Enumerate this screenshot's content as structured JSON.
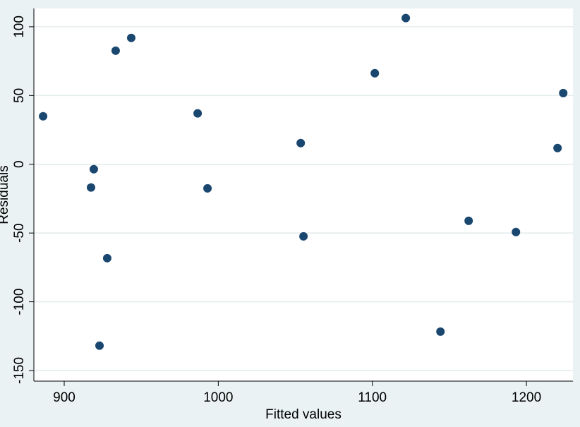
{
  "chart_data": {
    "type": "scatter",
    "x_label": "Fitted values",
    "y_label": "Residuals",
    "color": "#1a476f",
    "x": [
      886.3,
      917.4,
      919.2,
      927.9,
      922.9,
      933.4,
      943.5,
      986.6,
      993.0,
      1053.5,
      1055.3,
      1101.6,
      1121.7,
      1144.2,
      1162.5,
      1193.2,
      1220.2,
      1223.9
    ],
    "values": [
      34.9,
      -16.9,
      -3.6,
      -68.3,
      -131.9,
      82.6,
      91.9,
      37.0,
      -17.5,
      15.4,
      -52.4,
      66.2,
      106.3,
      -121.7,
      -41.1,
      -49.3,
      11.8,
      51.8
    ],
    "xlim": [
      880.3,
      1230.2
    ],
    "ylim": [
      -157.7,
      113.3
    ],
    "xticks": [
      900,
      1000,
      1100,
      1200
    ],
    "yticks": [
      -150,
      -100,
      -50,
      0,
      50,
      100
    ],
    "grid": true
  }
}
